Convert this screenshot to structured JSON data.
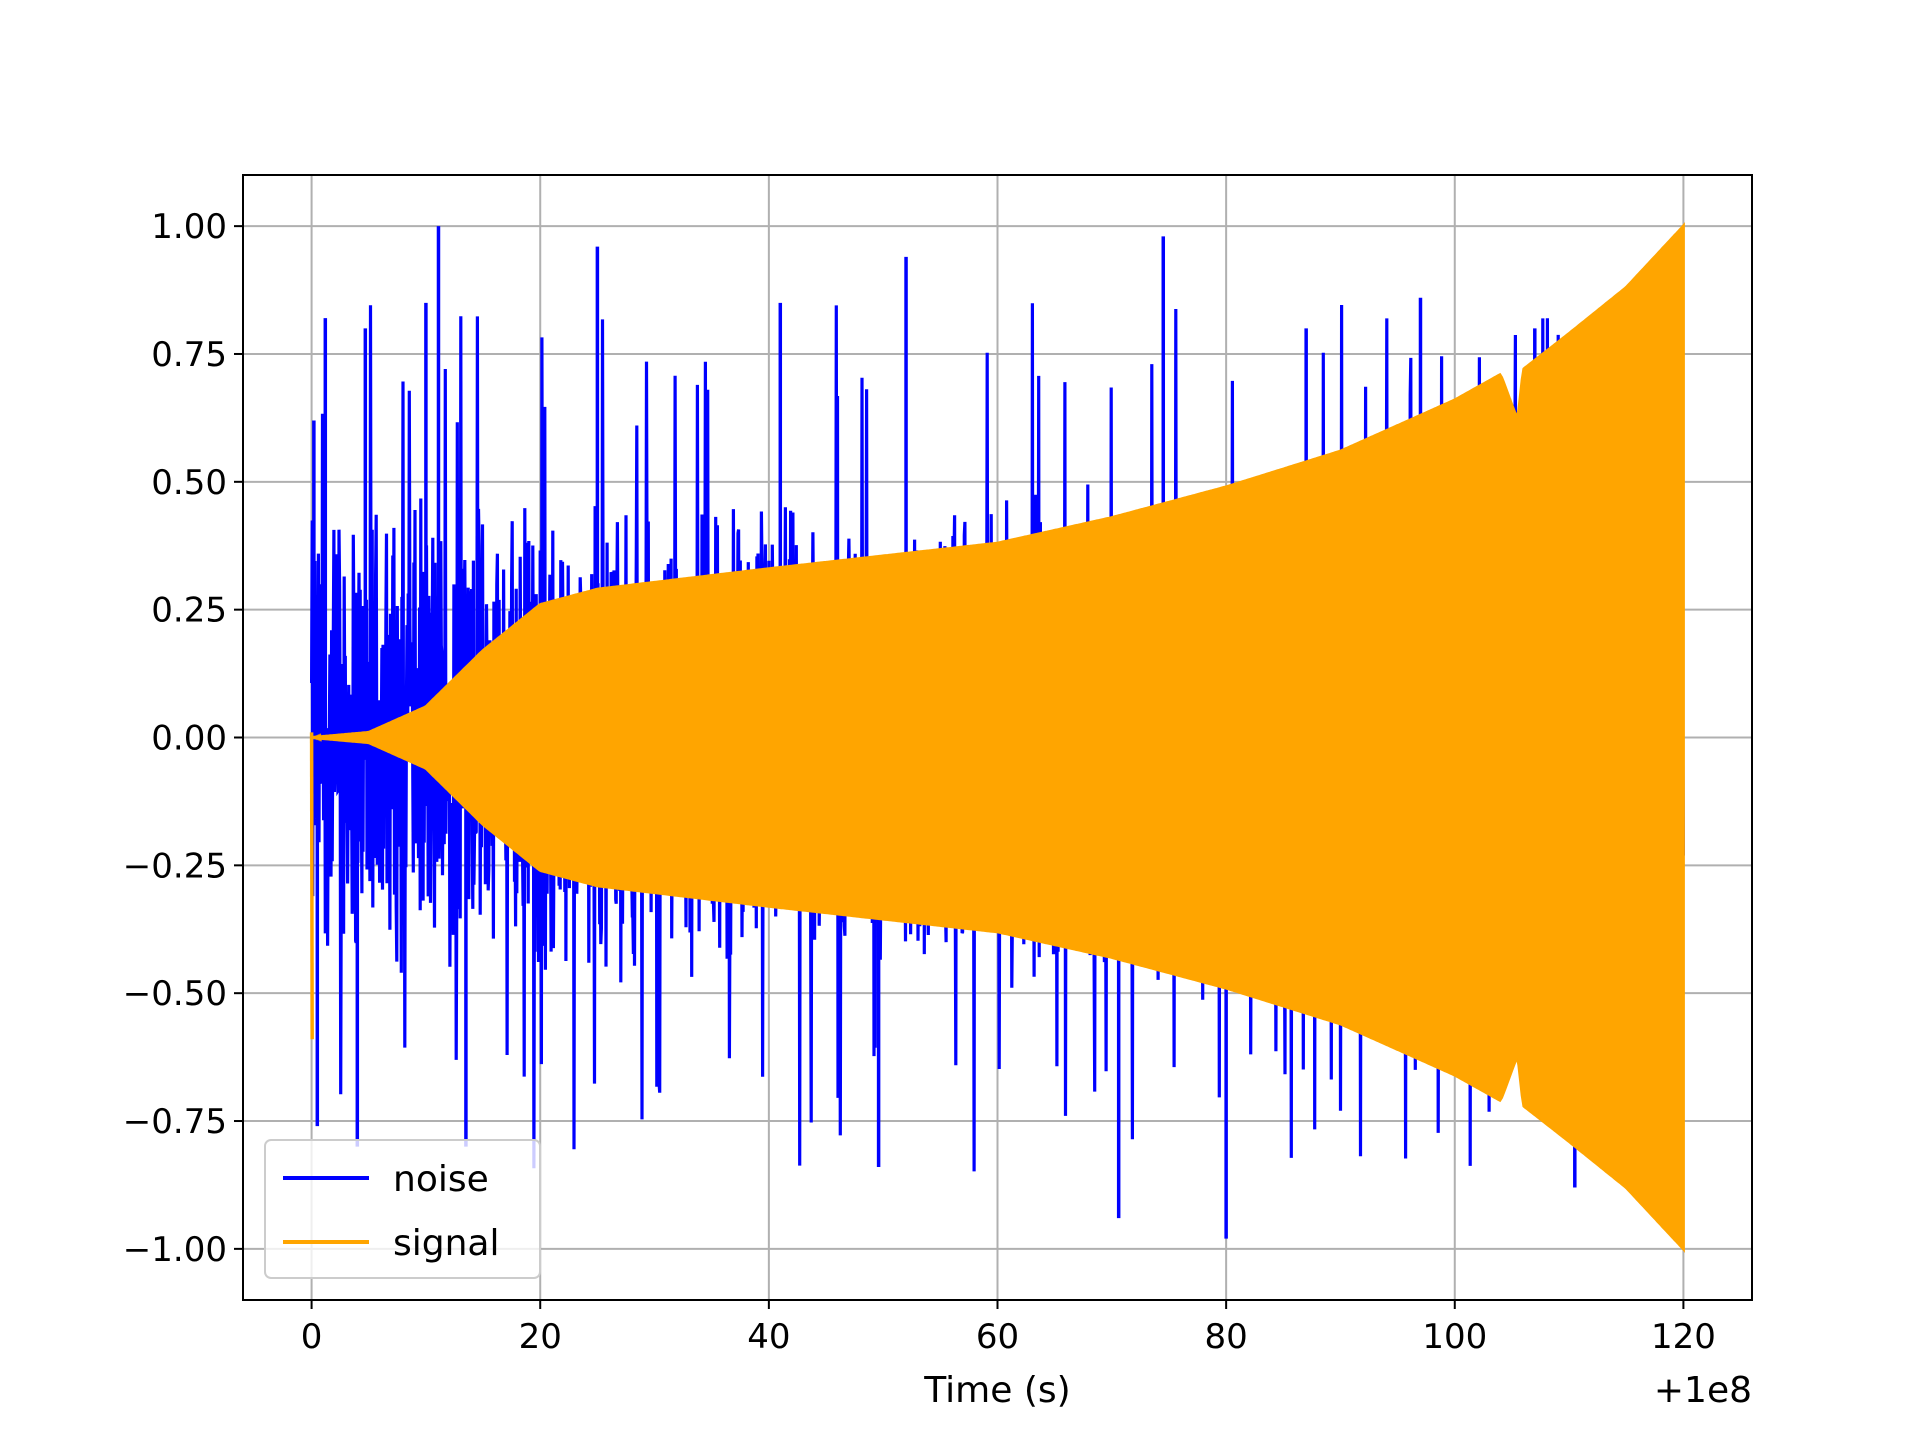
{
  "chart_data": {
    "type": "line",
    "title": "",
    "xlabel": "Time (s)",
    "ylabel": "",
    "x_offset_label": "+1e8",
    "xlim": [
      -6,
      126
    ],
    "ylim": [
      -1.1,
      1.1
    ],
    "xticks": [
      0,
      20,
      40,
      60,
      80,
      100,
      120
    ],
    "yticks": [
      -1.0,
      -0.75,
      -0.5,
      -0.25,
      0.0,
      0.25,
      0.5,
      0.75,
      1.0
    ],
    "xtick_labels": [
      "0",
      "20",
      "40",
      "60",
      "80",
      "100",
      "120"
    ],
    "ytick_labels": [
      "−1.00",
      "−0.75",
      "−0.50",
      "−0.25",
      "0.00",
      "0.25",
      "0.50",
      "0.75",
      "1.00"
    ],
    "grid": true,
    "legend_position": "lower-left",
    "series": [
      {
        "name": "noise",
        "color": "#0000ff",
        "x_range": [
          0,
          120
        ],
        "typical_envelope": [
          [
            0,
            0.5
          ],
          [
            20,
            0.5
          ],
          [
            60,
            0.5
          ],
          [
            100,
            0.55
          ],
          [
            120,
            0.55
          ]
        ],
        "peak_values": [
          [
            0.2,
            0.62
          ],
          [
            1.2,
            0.82
          ],
          [
            4.7,
            0.8
          ],
          [
            11.1,
            1.0
          ],
          [
            10.0,
            0.85
          ],
          [
            25.0,
            0.96
          ],
          [
            41.0,
            0.85
          ],
          [
            52.0,
            0.94
          ],
          [
            74.5,
            0.98
          ],
          [
            87.0,
            0.8
          ],
          [
            97.0,
            0.86
          ],
          [
            107.0,
            0.8
          ]
        ],
        "trough_values": [
          [
            0.5,
            -0.76
          ],
          [
            4.0,
            -0.8
          ],
          [
            13.5,
            -0.8
          ],
          [
            49.6,
            -0.84
          ],
          [
            70.6,
            -0.94
          ],
          [
            80.0,
            -0.98
          ],
          [
            110.5,
            -0.88
          ]
        ]
      },
      {
        "name": "signal",
        "color": "#ffa500",
        "x_range": [
          0,
          120
        ],
        "envelope": [
          [
            0,
            0.0
          ],
          [
            5,
            0.01
          ],
          [
            10,
            0.06
          ],
          [
            15,
            0.17
          ],
          [
            20,
            0.26
          ],
          [
            25,
            0.29
          ],
          [
            40,
            0.33
          ],
          [
            60,
            0.38
          ],
          [
            70,
            0.43
          ],
          [
            80,
            0.49
          ],
          [
            90,
            0.56
          ],
          [
            100,
            0.66
          ],
          [
            104,
            0.71
          ],
          [
            105.5,
            0.62
          ],
          [
            106,
            0.72
          ],
          [
            110,
            0.79
          ],
          [
            115,
            0.88
          ],
          [
            120,
            1.0
          ]
        ],
        "initial_spike": [
          [
            0,
            0.01
          ],
          [
            0.05,
            -0.59
          ]
        ]
      }
    ]
  }
}
